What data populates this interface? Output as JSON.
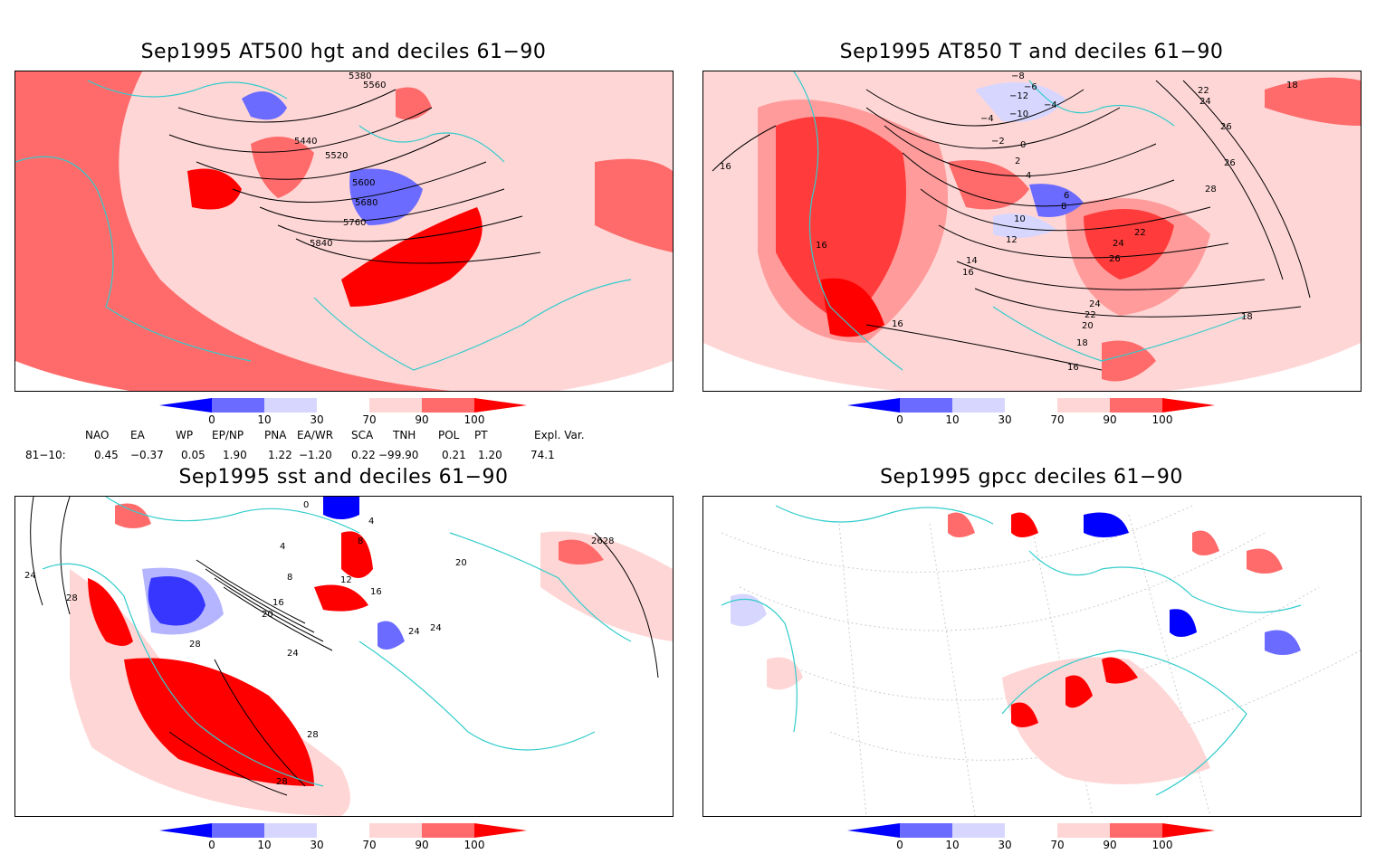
{
  "panels": [
    {
      "id": "at500",
      "title": "Sep1995 AT500 hgt and deciles 61−90",
      "contour_labels": [
        "5380",
        "5560",
        "5440",
        "5520",
        "5600",
        "5680",
        "5760",
        "5840"
      ]
    },
    {
      "id": "at850",
      "title": "Sep1995 AT850 T and deciles 61−90",
      "contour_labels": [
        "−8",
        "−6",
        "−12",
        "−10",
        "−4",
        "−4",
        "−2",
        "0",
        "2",
        "4",
        "6",
        "8",
        "10",
        "12",
        "14",
        "16",
        "16",
        "16",
        "16",
        "16",
        "18",
        "18",
        "18",
        "20",
        "22",
        "22",
        "22",
        "24",
        "24",
        "24",
        "26",
        "26",
        "26",
        "28"
      ]
    },
    {
      "id": "sst",
      "title": "Sep1995 sst and deciles 61−90",
      "contour_labels": [
        "24",
        "28",
        "4",
        "8",
        "12",
        "16",
        "20",
        "24",
        "28",
        "28",
        "28",
        "24",
        "24",
        "20",
        "2628",
        "0",
        "4",
        "8",
        "16"
      ]
    },
    {
      "id": "gpcc",
      "title": "Sep1995 gpcc deciles 61−90",
      "contour_labels": []
    }
  ],
  "colorbar": {
    "ticks": [
      "0",
      "10",
      "30",
      "70",
      "90",
      "100"
    ],
    "colors": [
      "#0000ff",
      "#6b6bff",
      "#d6d6ff",
      "#ffffff",
      "#ffd6d6",
      "#ff6b6b",
      "#ff0000"
    ]
  },
  "teleconnections": {
    "row_label": "81−10:",
    "headers": [
      "NAO",
      "EA",
      "WP",
      "EP/NP",
      "PNA",
      "EA/WR",
      "SCA",
      "TNH",
      "POL",
      "PT",
      "Expl. Var."
    ],
    "values": [
      "0.45",
      "−0.37",
      "0.05",
      "1.90",
      "1.22",
      "−1.20",
      "0.22",
      "−99.90",
      "0.21",
      "1.20",
      "74.1"
    ]
  },
  "colors": {
    "coastline": "#33cccc",
    "strong_pos": "#ff0000",
    "mid_pos": "#ff6b6b",
    "weak_pos": "#ffd6d6",
    "weak_neg": "#d6d6ff",
    "mid_neg": "#6b6bff",
    "strong_neg": "#0000ff"
  }
}
